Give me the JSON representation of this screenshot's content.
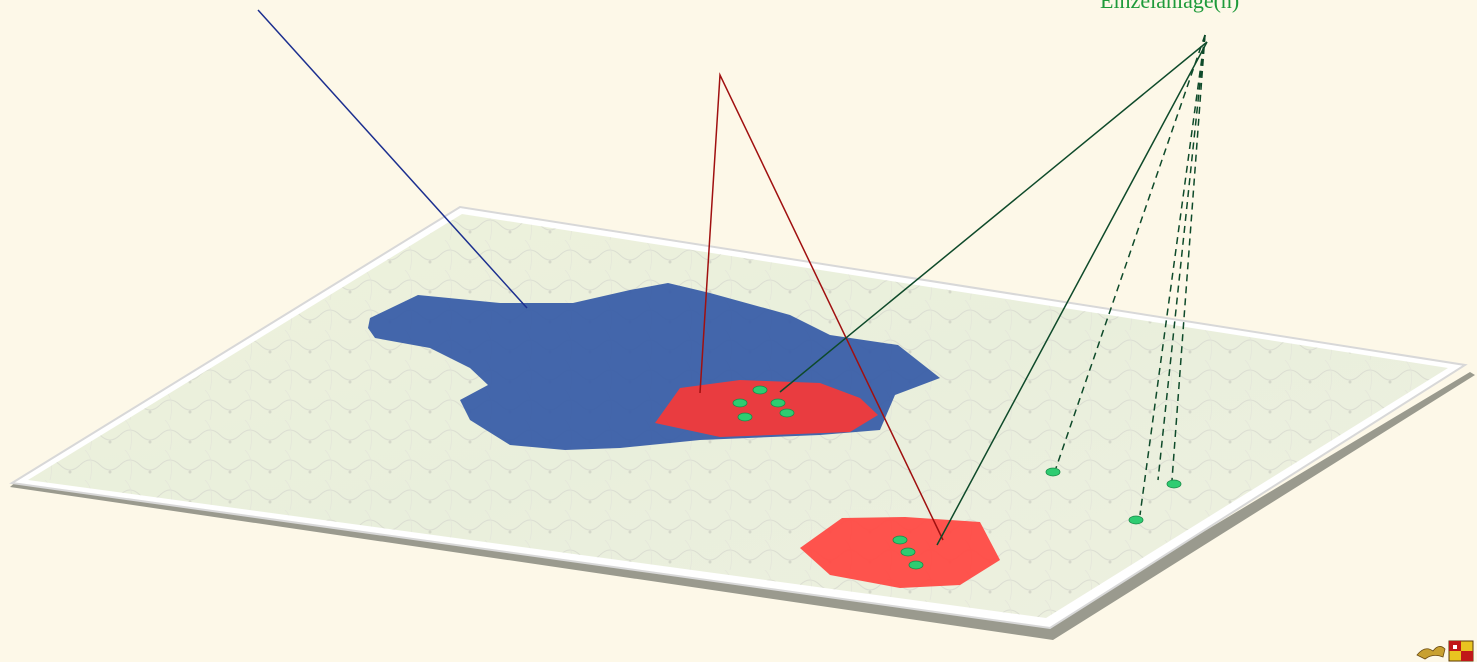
{
  "labels": {
    "einzelanlage": "Einzelanlage(n)"
  },
  "colors": {
    "background": "#fdf8e8",
    "blue_area": "#3a5ea8",
    "red_area": "#f23a3a",
    "turbine": "#2ecc71",
    "blue_line": "#1c2f8f",
    "red_line": "#a01010",
    "green_line": "#0e4a2a"
  },
  "icons": {
    "logo": "coat-of-arms-logo"
  }
}
